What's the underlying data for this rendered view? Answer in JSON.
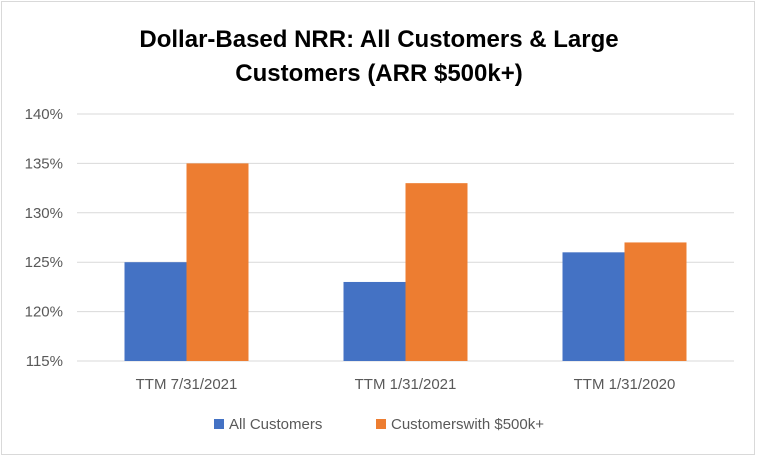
{
  "chart_data": {
    "type": "bar",
    "title_lines": [
      "Dollar-Based NRR: All Customers & Large",
      "Customers (ARR $500k+)"
    ],
    "categories": [
      "TTM 7/31/2021",
      "TTM 1/31/2021",
      "TTM 1/31/2020"
    ],
    "series": [
      {
        "name": "All Customers",
        "values": [
          125,
          123,
          126
        ],
        "color": "#4472C4"
      },
      {
        "name": "Customerswith $500k+",
        "values": [
          135,
          133,
          127
        ],
        "color": "#ED7D31"
      }
    ],
    "ylim": [
      115,
      140
    ],
    "yticks": [
      115,
      120,
      125,
      130,
      135,
      140
    ],
    "ytick_labels": [
      "115%",
      "120%",
      "125%",
      "130%",
      "135%",
      "140%"
    ],
    "grid": true,
    "legend_position": "bottom",
    "gridline_color": "#d9d9d9"
  }
}
